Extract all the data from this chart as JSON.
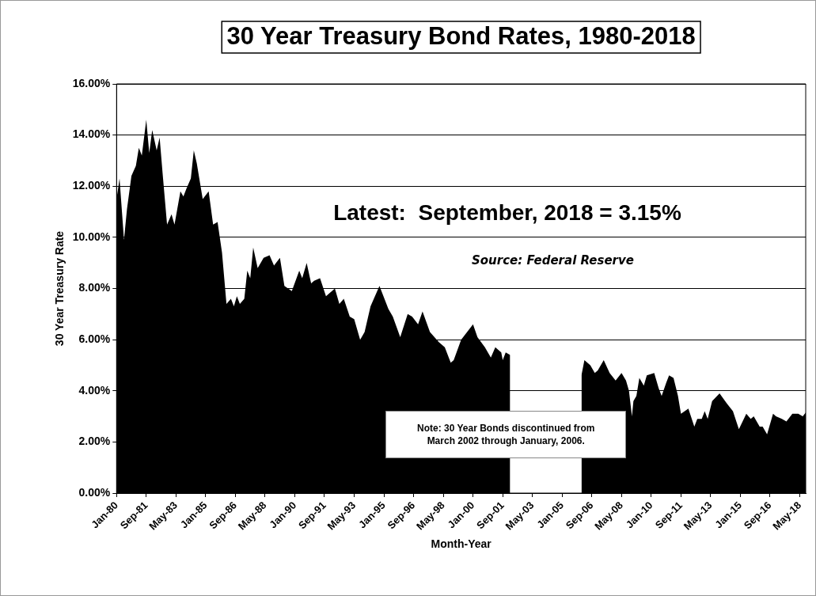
{
  "chart_data": {
    "type": "area",
    "title": "30 Year Treasury Bond Rates, 1980-2018",
    "xlabel": "Month-Year",
    "ylabel": "30 Year Treasury Rate",
    "annotations": [
      "Latest:  September, 2018 = 3.15%",
      "Source: Federal Reserve",
      "Note: 30 Year Bonds discontinued from March 2002 through January, 2006."
    ],
    "x": [
      "1980-01",
      "1980-03",
      "1980-06",
      "1980-08",
      "1980-11",
      "1981-02",
      "1981-04",
      "1981-06",
      "1981-09",
      "1981-11",
      "1982-01",
      "1982-04",
      "1982-06",
      "1982-08",
      "1982-11",
      "1983-02",
      "1983-04",
      "1983-08",
      "1983-10",
      "1983-12",
      "1984-03",
      "1984-05",
      "1984-07",
      "1984-11",
      "1985-03",
      "1985-06",
      "1985-09",
      "1985-12",
      "1986-03",
      "1986-06",
      "1986-08",
      "1986-10",
      "1986-12",
      "1987-03",
      "1987-05",
      "1987-07",
      "1987-09",
      "1987-12",
      "1988-04",
      "1988-08",
      "1988-11",
      "1989-03",
      "1989-06",
      "1989-11",
      "1990-04",
      "1990-06",
      "1990-09",
      "1990-12",
      "1991-02",
      "1991-06",
      "1991-10",
      "1992-04",
      "1992-07",
      "1992-10",
      "1993-02",
      "1993-05",
      "1993-09",
      "1993-12",
      "1994-04",
      "1994-10",
      "1995-04",
      "1995-07",
      "1995-12",
      "1996-05",
      "1996-08",
      "1996-12",
      "1997-03",
      "1997-08",
      "1998-02",
      "1998-06",
      "1998-10",
      "1998-12",
      "1999-05",
      "1999-09",
      "2000-01",
      "2000-04",
      "2000-09",
      "2001-01",
      "2001-04",
      "2001-08",
      "2001-09",
      "2001-11",
      "2002-02",
      "2002-03",
      "2006-02",
      "2006-04",
      "2006-08",
      "2006-11",
      "2007-01",
      "2007-05",
      "2007-09",
      "2008-01",
      "2008-05",
      "2008-08",
      "2008-10",
      "2008-12",
      "2009-01",
      "2009-03",
      "2009-05",
      "2009-08",
      "2009-10",
      "2010-03",
      "2010-06",
      "2010-08",
      "2010-11",
      "2011-01",
      "2011-04",
      "2011-07",
      "2011-09",
      "2012-02",
      "2012-06",
      "2012-08",
      "2012-11",
      "2013-01",
      "2013-03",
      "2013-06",
      "2013-11",
      "2014-04",
      "2014-08",
      "2014-12",
      "2015-05",
      "2015-08",
      "2015-10",
      "2016-02",
      "2016-04",
      "2016-07",
      "2016-11",
      "2017-01",
      "2017-05",
      "2017-08",
      "2017-12",
      "2018-04",
      "2018-07",
      "2018-09"
    ],
    "series": [
      {
        "color": "#000000",
        "values": [
          11.5,
          12.3,
          9.9,
          11.1,
          12.4,
          12.8,
          13.5,
          13.2,
          14.6,
          13.3,
          14.2,
          13.4,
          13.9,
          12.5,
          10.5,
          10.9,
          10.5,
          11.8,
          11.6,
          11.9,
          12.3,
          13.4,
          12.9,
          11.5,
          11.8,
          10.5,
          10.6,
          9.4,
          7.4,
          7.6,
          7.3,
          7.7,
          7.4,
          7.6,
          8.7,
          8.4,
          9.6,
          8.8,
          9.2,
          9.3,
          8.9,
          9.2,
          8.1,
          7.9,
          8.7,
          8.4,
          9.0,
          8.2,
          8.3,
          8.4,
          7.7,
          8.0,
          7.4,
          7.6,
          6.9,
          6.8,
          6.0,
          6.3,
          7.3,
          8.1,
          7.2,
          6.9,
          6.1,
          7.0,
          6.9,
          6.6,
          7.1,
          6.3,
          5.9,
          5.7,
          5.1,
          5.2,
          6.0,
          6.3,
          6.6,
          6.1,
          5.7,
          5.3,
          5.7,
          5.5,
          5.2,
          5.5,
          5.4,
          null,
          4.6,
          5.2,
          5.0,
          4.7,
          4.8,
          5.2,
          4.7,
          4.4,
          4.7,
          4.4,
          4.0,
          3.0,
          3.6,
          3.8,
          4.5,
          4.2,
          4.6,
          4.7,
          4.1,
          3.8,
          4.3,
          4.6,
          4.5,
          3.8,
          3.1,
          3.3,
          2.6,
          2.9,
          2.9,
          3.2,
          2.9,
          3.6,
          3.9,
          3.5,
          3.2,
          2.5,
          3.1,
          2.9,
          3.0,
          2.6,
          2.6,
          2.3,
          3.1,
          3.0,
          2.9,
          2.8,
          3.1,
          3.1,
          3.0,
          3.15
        ]
      }
    ],
    "xlim": [
      "1980-01",
      "2018-09"
    ],
    "xticks": [
      {
        "value": "1980-01",
        "label": "Jan-80"
      },
      {
        "value": "1981-09",
        "label": "Sep-81"
      },
      {
        "value": "1983-05",
        "label": "May-83"
      },
      {
        "value": "1985-01",
        "label": "Jan-85"
      },
      {
        "value": "1986-09",
        "label": "Sep-86"
      },
      {
        "value": "1988-05",
        "label": "May-88"
      },
      {
        "value": "1990-01",
        "label": "Jan-90"
      },
      {
        "value": "1991-09",
        "label": "Sep-91"
      },
      {
        "value": "1993-05",
        "label": "May-93"
      },
      {
        "value": "1995-01",
        "label": "Jan-95"
      },
      {
        "value": "1996-09",
        "label": "Sep-96"
      },
      {
        "value": "1998-05",
        "label": "May-98"
      },
      {
        "value": "2000-01",
        "label": "Jan-00"
      },
      {
        "value": "2001-09",
        "label": "Sep-01"
      },
      {
        "value": "2003-05",
        "label": "May-03"
      },
      {
        "value": "2005-01",
        "label": "Jan-05"
      },
      {
        "value": "2006-09",
        "label": "Sep-06"
      },
      {
        "value": "2008-05",
        "label": "May-08"
      },
      {
        "value": "2010-01",
        "label": "Jan-10"
      },
      {
        "value": "2011-09",
        "label": "Sep-11"
      },
      {
        "value": "2013-05",
        "label": "May-13"
      },
      {
        "value": "2015-01",
        "label": "Jan-15"
      },
      {
        "value": "2016-09",
        "label": "Sep-16"
      },
      {
        "value": "2018-05",
        "label": "May-18"
      }
    ],
    "ylim": [
      0,
      16
    ],
    "yticks": [
      {
        "value": 0,
        "label": "0.00%"
      },
      {
        "value": 2,
        "label": "2.00%"
      },
      {
        "value": 4,
        "label": "4.00%"
      },
      {
        "value": 6,
        "label": "6.00%"
      },
      {
        "value": 8,
        "label": "8.00%"
      },
      {
        "value": 10,
        "label": "10.00%"
      },
      {
        "value": 12,
        "label": "12.00%"
      },
      {
        "value": 14,
        "label": "14.00%"
      },
      {
        "value": 16,
        "label": "16.00%"
      }
    ],
    "grid": "y",
    "legend": false,
    "marker": "none"
  }
}
